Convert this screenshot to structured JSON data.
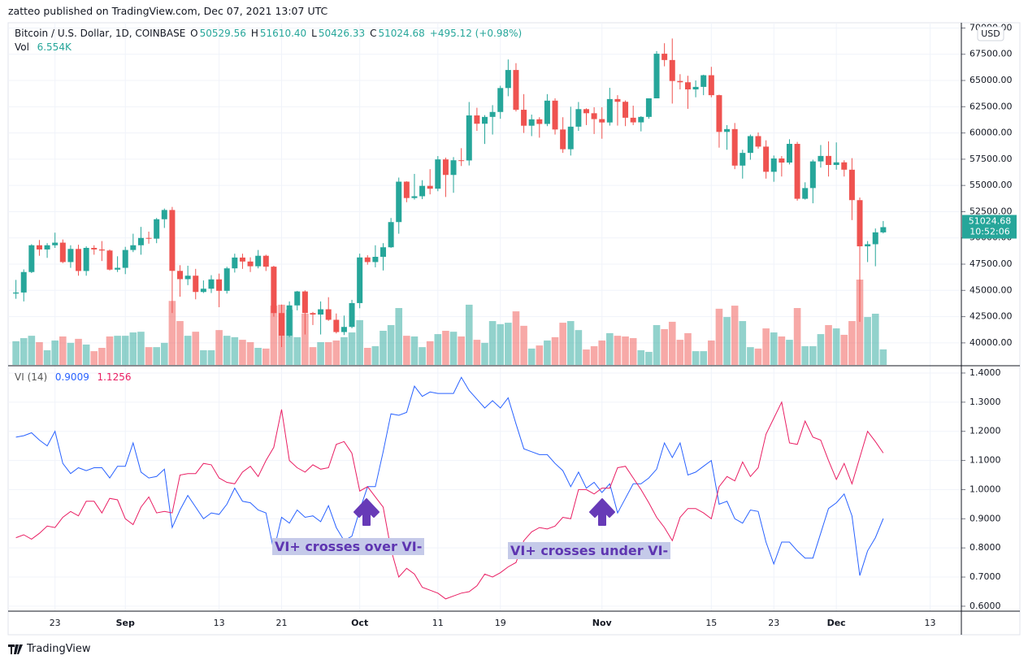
{
  "header": {
    "published": "zatteo published on TradingView.com, Dec 07, 2021 13:07 UTC"
  },
  "footer": {
    "brand": "TradingView"
  },
  "chart_data": [
    {
      "type": "candlestick",
      "title": "Bitcoin / U.S. Dollar, 1D, COINBASE",
      "legend": [
        {
          "key": "O",
          "label": "50529.56"
        },
        {
          "key": "H",
          "label": "51610.40"
        },
        {
          "key": "L",
          "label": "50426.33"
        },
        {
          "key": "C",
          "label": "51024.68"
        }
      ],
      "change": "+495.12 (+0.98%)",
      "currency": "USD",
      "countdown": "10:52:06",
      "up_color": "#26a69a",
      "down_color": "#ef5350",
      "grid": true,
      "x": [
        "2021-08-18",
        "2021-08-19",
        "2021-08-20",
        "2021-08-21",
        "2021-08-22",
        "2021-08-23",
        "2021-08-24",
        "2021-08-25",
        "2021-08-26",
        "2021-08-27",
        "2021-08-28",
        "2021-08-29",
        "2021-08-30",
        "2021-08-31",
        "2021-09-01",
        "2021-09-02",
        "2021-09-03",
        "2021-09-04",
        "2021-09-05",
        "2021-09-06",
        "2021-09-07",
        "2021-09-08",
        "2021-09-09",
        "2021-09-10",
        "2021-09-11",
        "2021-09-12",
        "2021-09-13",
        "2021-09-14",
        "2021-09-15",
        "2021-09-16",
        "2021-09-17",
        "2021-09-18",
        "2021-09-19",
        "2021-09-20",
        "2021-09-21",
        "2021-09-22",
        "2021-09-23",
        "2021-09-24",
        "2021-09-25",
        "2021-09-26",
        "2021-09-27",
        "2021-09-28",
        "2021-09-29",
        "2021-09-30",
        "2021-10-01",
        "2021-10-02",
        "2021-10-03",
        "2021-10-04",
        "2021-10-05",
        "2021-10-06",
        "2021-10-07",
        "2021-10-08",
        "2021-10-09",
        "2021-10-10",
        "2021-10-11",
        "2021-10-12",
        "2021-10-13",
        "2021-10-14",
        "2021-10-15",
        "2021-10-16",
        "2021-10-17",
        "2021-10-18",
        "2021-10-19",
        "2021-10-20",
        "2021-10-21",
        "2021-10-22",
        "2021-10-23",
        "2021-10-24",
        "2021-10-25",
        "2021-10-26",
        "2021-10-27",
        "2021-10-28",
        "2021-10-29",
        "2021-10-30",
        "2021-10-31",
        "2021-11-01",
        "2021-11-02",
        "2021-11-03",
        "2021-11-04",
        "2021-11-05",
        "2021-11-06",
        "2021-11-07",
        "2021-11-08",
        "2021-11-09",
        "2021-11-10",
        "2021-11-11",
        "2021-11-12",
        "2021-11-13",
        "2021-11-14",
        "2021-11-15",
        "2021-11-16",
        "2021-11-17",
        "2021-11-18",
        "2021-11-19",
        "2021-11-20",
        "2021-11-21",
        "2021-11-22",
        "2021-11-23",
        "2021-11-24",
        "2021-11-25",
        "2021-11-26",
        "2021-11-27",
        "2021-11-28",
        "2021-11-29",
        "2021-11-30",
        "2021-12-01",
        "2021-12-02",
        "2021-12-03",
        "2021-12-04",
        "2021-12-05",
        "2021-12-06",
        "2021-12-07"
      ],
      "open": [
        44700,
        44800,
        46750,
        49300,
        48900,
        49300,
        49550,
        47700,
        48950,
        46850,
        49050,
        48900,
        48800,
        46980,
        47150,
        48850,
        49300,
        50000,
        49930,
        51780,
        52660,
        46860,
        46070,
        46400,
        44850,
        45160,
        46050,
        44960,
        47100,
        48130,
        47750,
        47300,
        48300,
        47260,
        42840,
        40690,
        43570,
        44900,
        42840,
        42700,
        43200,
        42200,
        41030,
        41520,
        43790,
        48140,
        47700,
        48200,
        49110,
        51510,
        55360,
        53800,
        53970,
        54960,
        54690,
        57480,
        56000,
        57400,
        57380,
        61670,
        60880,
        61530,
        62000,
        64280,
        66000,
        62210,
        60690,
        61300,
        60860,
        63080,
        60330,
        58450,
        60600,
        62270,
        61880,
        61320,
        61000,
        63230,
        62970,
        61450,
        61010,
        61530,
        63300,
        67550,
        66950,
        64950,
        64830,
        64150,
        64390,
        65500,
        63600,
        60100,
        60370,
        56890,
        58100,
        59700,
        58700,
        56300,
        57570,
        57180,
        58960,
        53730,
        54750,
        57290,
        57810,
        56950,
        57200,
        56500,
        53600,
        49200,
        49400,
        50529.56
      ],
      "high": [
        46000,
        47000,
        49400,
        49800,
        49500,
        50500,
        49850,
        49300,
        49350,
        49200,
        49300,
        49700,
        48900,
        48250,
        49150,
        50400,
        51050,
        50600,
        51900,
        52800,
        52950,
        47400,
        47350,
        47050,
        45950,
        46450,
        46600,
        47250,
        48500,
        48500,
        48150,
        48850,
        48400,
        47350,
        43650,
        43950,
        44950,
        45000,
        42950,
        43950,
        44350,
        42800,
        42600,
        44100,
        48500,
        48350,
        49300,
        49500,
        51900,
        55750,
        55400,
        56100,
        55500,
        56550,
        57800,
        57650,
        57700,
        58550,
        62950,
        62400,
        61700,
        62650,
        64500,
        67000,
        66650,
        63700,
        61750,
        61500,
        63700,
        63300,
        61500,
        62500,
        62950,
        62350,
        62450,
        62450,
        64300,
        63600,
        63100,
        62600,
        61600,
        63300,
        67800,
        68550,
        69000,
        65600,
        65450,
        65000,
        65550,
        66300,
        63650,
        60750,
        60950,
        58400,
        59850,
        60050,
        59300,
        57850,
        57800,
        59400,
        59150,
        55300,
        57450,
        58850,
        59200,
        59100,
        57400,
        57600,
        53850,
        49700,
        50900,
        51610.4
      ],
      "low": [
        44200,
        43950,
        46650,
        48300,
        48100,
        49050,
        47600,
        47150,
        46400,
        46400,
        48400,
        47800,
        46900,
        46750,
        46550,
        48650,
        48400,
        49450,
        49500,
        50950,
        42850,
        44400,
        45500,
        44150,
        44750,
        44750,
        43400,
        44700,
        46700,
        47050,
        46750,
        47100,
        46850,
        42500,
        39600,
        40550,
        43100,
        40800,
        41700,
        40800,
        42100,
        40900,
        40750,
        41400,
        43300,
        47450,
        47200,
        46900,
        49050,
        50400,
        53400,
        53650,
        53700,
        54150,
        54450,
        53900,
        54300,
        56850,
        56900,
        60200,
        58950,
        59850,
        61350,
        63500,
        62050,
        60000,
        59700,
        59550,
        60650,
        59850,
        58100,
        57850,
        60200,
        60750,
        59900,
        59450,
        60700,
        60700,
        60650,
        60750,
        60150,
        61350,
        63300,
        66350,
        62800,
        64150,
        62300,
        63400,
        63600,
        63400,
        58600,
        58400,
        56550,
        55650,
        57450,
        58500,
        55650,
        55350,
        55850,
        57000,
        53550,
        53650,
        53300,
        56700,
        55850,
        56500,
        55850,
        51700,
        42000,
        47700,
        47300,
        50426.33
      ],
      "close": [
        44800,
        46750,
        49300,
        48900,
        49300,
        49550,
        47700,
        48950,
        46850,
        49050,
        48900,
        48800,
        46980,
        47150,
        48850,
        49300,
        50000,
        49930,
        51780,
        52660,
        46860,
        46070,
        46400,
        44850,
        45160,
        46050,
        44960,
        47100,
        48130,
        47750,
        47300,
        48300,
        47260,
        42840,
        40690,
        43570,
        44900,
        42840,
        42700,
        43200,
        42200,
        41030,
        41520,
        43790,
        48140,
        47700,
        48200,
        49110,
        51510,
        55360,
        53800,
        53970,
        54960,
        54690,
        57480,
        56000,
        57400,
        57380,
        61670,
        60880,
        61530,
        62000,
        64280,
        66000,
        62210,
        60690,
        61300,
        60860,
        63080,
        60330,
        58450,
        60600,
        62270,
        61880,
        61320,
        61000,
        63230,
        62970,
        61450,
        61010,
        61530,
        63300,
        67550,
        66950,
        64950,
        64830,
        64150,
        64390,
        65500,
        63600,
        60100,
        60370,
        56890,
        58100,
        59700,
        58700,
        56300,
        57570,
        57180,
        58960,
        53730,
        54750,
        57290,
        57810,
        56950,
        57200,
        56500,
        53600,
        49200,
        49400,
        50529.56,
        51024.68
      ],
      "xlim": [
        "2021-08-17",
        "2021-12-17"
      ],
      "xticks": [
        {
          "value": "2021-08-23",
          "label": "23"
        },
        {
          "value": "2021-09-01",
          "label": "Sep"
        },
        {
          "value": "2021-09-13",
          "label": "13"
        },
        {
          "value": "2021-09-21",
          "label": "21"
        },
        {
          "value": "2021-10-01",
          "label": "Oct"
        },
        {
          "value": "2021-10-11",
          "label": "11"
        },
        {
          "value": "2021-10-19",
          "label": "19"
        },
        {
          "value": "2021-11-01",
          "label": "Nov"
        },
        {
          "value": "2021-11-15",
          "label": "15"
        },
        {
          "value": "2021-11-23",
          "label": "23"
        },
        {
          "value": "2021-12-01",
          "label": "Dec"
        },
        {
          "value": "2021-12-13",
          "label": "13"
        }
      ],
      "ylim": [
        37900,
        70500
      ],
      "yticks": [
        {
          "value": 40000,
          "label": "40000.00"
        },
        {
          "value": 42500,
          "label": "42500.00"
        },
        {
          "value": 45000,
          "label": "45000.00"
        },
        {
          "value": 47500,
          "label": "47500.00"
        },
        {
          "value": 50000,
          "label": "50000.00"
        },
        {
          "value": 52500,
          "label": "52500.00"
        },
        {
          "value": 55000,
          "label": "55000.00"
        },
        {
          "value": 57500,
          "label": "57500.00"
        },
        {
          "value": 60000,
          "label": "60000.00"
        },
        {
          "value": 62500,
          "label": "62500.00"
        },
        {
          "value": 65000,
          "label": "65000.00"
        },
        {
          "value": 67500,
          "label": "67500.00"
        },
        {
          "value": 70000,
          "label": "70000.00"
        }
      ]
    },
    {
      "type": "bar",
      "name": "Vol",
      "last_value_label": "6.554K",
      "values": [
        10,
        11.3,
        12.3,
        9.6,
        6.2,
        10.3,
        12,
        9.3,
        11,
        8.6,
        5.8,
        7.2,
        12,
        12.3,
        12.3,
        13.7,
        14,
        7.5,
        7.5,
        9.3,
        27,
        18.5,
        12.3,
        14,
        6.2,
        6.2,
        14.7,
        12.3,
        11.7,
        10.6,
        9.6,
        7.2,
        6.9,
        25,
        25.4,
        23.3,
        11.7,
        21.6,
        7.5,
        9.6,
        9.6,
        10.3,
        11.7,
        13.7,
        18.9,
        7.2,
        7.9,
        14.4,
        16.8,
        24,
        12.3,
        12,
        7.5,
        10,
        13,
        14.4,
        14,
        12,
        25.4,
        10.6,
        9.3,
        18.5,
        17.2,
        17.8,
        22.6,
        16.5,
        6.9,
        8.2,
        10.3,
        11.7,
        17.8,
        18.5,
        14.7,
        6.5,
        7.9,
        10.3,
        13.4,
        12.3,
        12,
        11.3,
        6.2,
        5.5,
        16.8,
        15.1,
        18.2,
        10.6,
        13.4,
        5.8,
        5.8,
        10.3,
        23.7,
        20.2,
        25,
        18.5,
        7.5,
        6.9,
        15.4,
        13.7,
        12,
        10.6,
        24,
        7.9,
        7.9,
        13,
        16.8,
        15.4,
        12.7,
        18.5,
        36,
        20.2,
        21.6,
        6.554
      ]
    },
    {
      "type": "line",
      "title": "VI (14)",
      "series": [
        {
          "color": "#2962ff",
          "values": [
            1.18,
            1.185,
            1.195,
            1.17,
            1.15,
            1.2,
            1.09,
            1.055,
            1.075,
            1.065,
            1.075,
            1.075,
            1.04,
            1.08,
            1.08,
            1.16,
            1.06,
            1.04,
            1.045,
            1.07,
            0.87,
            0.93,
            0.98,
            0.94,
            0.9,
            0.92,
            0.915,
            0.95,
            1.005,
            0.96,
            0.955,
            0.93,
            0.92,
            0.79,
            0.905,
            0.885,
            0.93,
            0.905,
            0.91,
            0.89,
            0.945,
            0.87,
            0.825,
            0.84,
            0.93,
            1.01,
            1.01,
            1.13,
            1.26,
            1.255,
            1.265,
            1.355,
            1.32,
            1.335,
            1.33,
            1.33,
            1.33,
            1.385,
            1.34,
            1.31,
            1.28,
            1.305,
            1.28,
            1.315,
            1.225,
            1.14,
            1.13,
            1.12,
            1.12,
            1.09,
            1.065,
            1.01,
            1.06,
            1.005,
            1.025,
            0.99,
            1.02,
            0.92,
            0.97,
            1.02,
            1.02,
            1.04,
            1.07,
            1.16,
            1.11,
            1.16,
            1.05,
            1.06,
            1.08,
            1.1,
            0.95,
            0.96,
            0.9,
            0.885,
            0.93,
            0.925,
            0.82,
            0.745,
            0.82,
            0.82,
            0.79,
            0.765,
            0.765,
            0.85,
            0.935,
            0.955,
            0.985,
            0.91,
            0.705,
            0.79,
            0.835,
            0.9009
          ]
        },
        {
          "color": "#e91e63",
          "values": [
            0.835,
            0.845,
            0.83,
            0.85,
            0.875,
            0.87,
            0.905,
            0.925,
            0.91,
            0.96,
            0.96,
            0.92,
            0.97,
            0.965,
            0.9,
            0.88,
            0.94,
            0.975,
            0.92,
            0.925,
            0.92,
            1.05,
            1.055,
            1.055,
            1.09,
            1.085,
            1.04,
            1.025,
            1.02,
            1.06,
            1.08,
            1.045,
            1.1,
            1.145,
            1.275,
            1.1,
            1.075,
            1.06,
            1.085,
            1.07,
            1.075,
            1.155,
            1.165,
            1.125,
            0.995,
            1.01,
            0.975,
            0.94,
            0.795,
            0.7,
            0.73,
            0.71,
            0.665,
            0.655,
            0.645,
            0.625,
            0.635,
            0.645,
            0.65,
            0.67,
            0.71,
            0.7,
            0.715,
            0.735,
            0.75,
            0.825,
            0.855,
            0.87,
            0.865,
            0.875,
            0.905,
            0.9,
            1,
            1,
            0.985,
            1.005,
            1.005,
            1.075,
            1.08,
            1.04,
            1,
            0.955,
            0.905,
            0.87,
            0.825,
            0.905,
            0.935,
            0.935,
            0.92,
            0.9,
            1.01,
            1.045,
            1.03,
            1.095,
            1.045,
            1.075,
            1.19,
            1.245,
            1.3,
            1.16,
            1.155,
            1.235,
            1.18,
            1.17,
            1.1,
            1.035,
            1.09,
            1.02,
            1.11,
            1.2,
            1.165,
            1.1256
          ]
        }
      ],
      "ylim": [
        0.583,
        1.425
      ],
      "yticks": [
        {
          "value": 0.6,
          "label": "0.6000"
        },
        {
          "value": 0.7,
          "label": "0.7000"
        },
        {
          "value": 0.8,
          "label": "0.8000"
        },
        {
          "value": 0.9,
          "label": "0.9000"
        },
        {
          "value": 1.0,
          "label": "1.0000"
        },
        {
          "value": 1.1,
          "label": "1.1000"
        },
        {
          "value": 1.2,
          "label": "1.2000"
        },
        {
          "value": 1.3,
          "label": "1.3000"
        },
        {
          "value": 1.4,
          "label": "1.4000"
        }
      ],
      "annotations": [
        {
          "text": "VI+ crosses over VI-"
        },
        {
          "text": "VI+ crosses under VI-"
        }
      ]
    }
  ]
}
